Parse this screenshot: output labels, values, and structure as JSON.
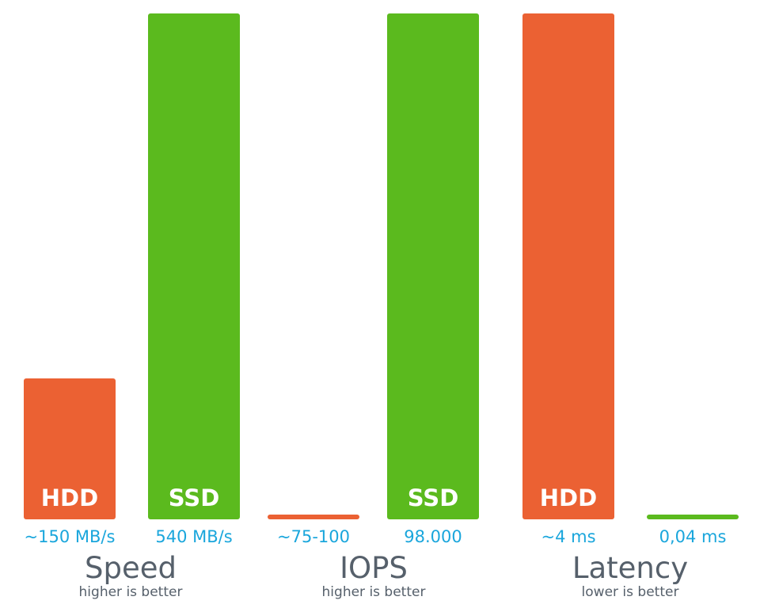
{
  "chart_data": {
    "type": "bar",
    "title": "",
    "colors": {
      "HDD": "#eb6133",
      "SSD": "#5bba1e",
      "value_text": "#1aa6dc",
      "group_text": "#56606b"
    },
    "groups": [
      {
        "title": "Speed",
        "subtitle": "higher is better",
        "max": 540,
        "bars": [
          {
            "series": "HDD",
            "value": 150,
            "value_label": "~150 MB/s",
            "in_bar_label": "HDD"
          },
          {
            "series": "SSD",
            "value": 540,
            "value_label": "540 MB/s",
            "in_bar_label": "SSD"
          }
        ]
      },
      {
        "title": "IOPS",
        "subtitle": "higher is better",
        "max": 98000,
        "bars": [
          {
            "series": "HDD",
            "value": 100,
            "value_label": "~75-100",
            "in_bar_label": ""
          },
          {
            "series": "SSD",
            "value": 98000,
            "value_label": "98.000",
            "in_bar_label": "SSD"
          }
        ]
      },
      {
        "title": "Latency",
        "subtitle": "lower is better",
        "max": 4,
        "bars": [
          {
            "series": "HDD",
            "value": 4,
            "value_label": "~4 ms",
            "in_bar_label": "HDD"
          },
          {
            "series": "SSD",
            "value": 0.04,
            "value_label": "0,04 ms",
            "in_bar_label": ""
          }
        ]
      }
    ]
  }
}
